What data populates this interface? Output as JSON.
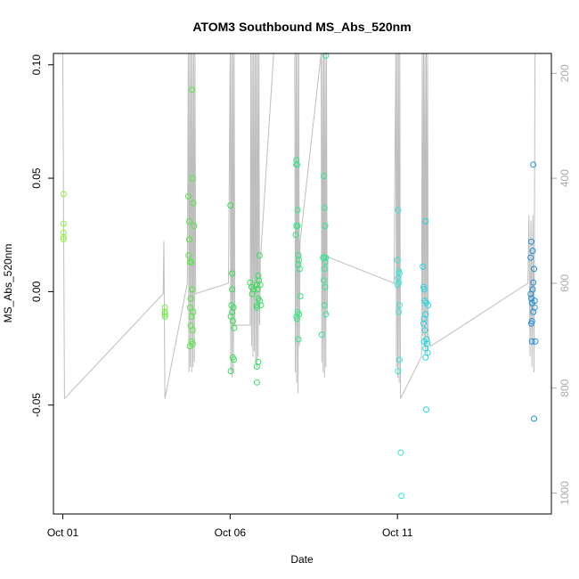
{
  "chart_data": {
    "type": "scatter",
    "title": "ATOM3 Southbound MS_Abs_520nm",
    "xlabel": "Date",
    "ylabel": "MS_Abs_520nm",
    "x_ticks": [
      {
        "value": 1,
        "label": "Oct 01"
      },
      {
        "value": 6,
        "label": "Oct 06"
      },
      {
        "value": 11,
        "label": "Oct 11"
      }
    ],
    "y_ticks": [
      -0.05,
      0.0,
      0.05,
      0.1
    ],
    "y_tick_labels": [
      "-0.05",
      "0.00",
      "0.05",
      "0.10"
    ],
    "xlim": [
      0.72,
      15.6
    ],
    "ylim": [
      -0.098,
      0.105
    ],
    "right_axis": {
      "ticks": [
        200,
        400,
        600,
        800,
        1000
      ],
      "tick_labels": [
        "200",
        "400",
        "600",
        "800",
        "1000"
      ],
      "lim": [
        1040,
        162
      ],
      "color": "#aaaaaa"
    },
    "line_color": "#bebebe",
    "points": [
      {
        "x": 1.02,
        "y": 0.043,
        "color": "#90ee40"
      },
      {
        "x": 1.02,
        "y": 0.03,
        "color": "#90ee40"
      },
      {
        "x": 1.02,
        "y": 0.026,
        "color": "#90ee40"
      },
      {
        "x": 1.02,
        "y": 0.024,
        "color": "#90ee40"
      },
      {
        "x": 1.02,
        "y": 0.023,
        "color": "#90ee40"
      },
      {
        "x": 4.05,
        "y": -0.007,
        "color": "#70e840"
      },
      {
        "x": 4.05,
        "y": -0.009,
        "color": "#70e840"
      },
      {
        "x": 4.05,
        "y": -0.01,
        "color": "#70e840"
      },
      {
        "x": 4.05,
        "y": -0.011,
        "color": "#70e840"
      },
      {
        "x": 4.75,
        "y": 0.042,
        "color": "#50e840"
      },
      {
        "x": 4.78,
        "y": 0.031,
        "color": "#50e840"
      },
      {
        "x": 4.78,
        "y": 0.023,
        "color": "#50e840"
      },
      {
        "x": 4.76,
        "y": 0.016,
        "color": "#50e840"
      },
      {
        "x": 4.8,
        "y": 0.013,
        "color": "#50e840"
      },
      {
        "x": 4.84,
        "y": 0.013,
        "color": "#50e840"
      },
      {
        "x": 4.86,
        "y": 0.089,
        "color": "#50e840"
      },
      {
        "x": 4.88,
        "y": 0.05,
        "color": "#50e840"
      },
      {
        "x": 4.9,
        "y": 0.039,
        "color": "#50e840"
      },
      {
        "x": 4.92,
        "y": 0.029,
        "color": "#50e840"
      },
      {
        "x": 4.86,
        "y": 0.001,
        "color": "#50e840"
      },
      {
        "x": 4.8,
        "y": -0.007,
        "color": "#50e840"
      },
      {
        "x": 4.9,
        "y": -0.009,
        "color": "#50e840"
      },
      {
        "x": 4.84,
        "y": -0.011,
        "color": "#50e840"
      },
      {
        "x": 4.82,
        "y": -0.015,
        "color": "#50e840"
      },
      {
        "x": 4.88,
        "y": -0.017,
        "color": "#50e840"
      },
      {
        "x": 4.84,
        "y": -0.022,
        "color": "#50e840"
      },
      {
        "x": 4.88,
        "y": -0.023,
        "color": "#50e840"
      },
      {
        "x": 4.8,
        "y": -0.024,
        "color": "#50e840"
      },
      {
        "x": 4.82,
        "y": -0.003,
        "color": "#50e840"
      },
      {
        "x": 6.01,
        "y": 0.038,
        "color": "#30e050"
      },
      {
        "x": 6.06,
        "y": 0.008,
        "color": "#30e050"
      },
      {
        "x": 6.06,
        "y": 0.001,
        "color": "#30e050"
      },
      {
        "x": 6.04,
        "y": -0.006,
        "color": "#30e050"
      },
      {
        "x": 6.1,
        "y": -0.007,
        "color": "#30e050"
      },
      {
        "x": 6.06,
        "y": -0.009,
        "color": "#30e050"
      },
      {
        "x": 6.02,
        "y": -0.011,
        "color": "#30e050"
      },
      {
        "x": 6.08,
        "y": -0.013,
        "color": "#30e050"
      },
      {
        "x": 6.12,
        "y": -0.016,
        "color": "#30e050"
      },
      {
        "x": 6.08,
        "y": -0.029,
        "color": "#30e050"
      },
      {
        "x": 6.11,
        "y": -0.03,
        "color": "#30e050"
      },
      {
        "x": 6.02,
        "y": -0.035,
        "color": "#30e050"
      },
      {
        "x": 6.6,
        "y": 0.004,
        "color": "#30e050"
      },
      {
        "x": 6.64,
        "y": 0.002,
        "color": "#30e050"
      },
      {
        "x": 6.7,
        "y": 0.001,
        "color": "#30e050"
      },
      {
        "x": 6.66,
        "y": -0.001,
        "color": "#30e050"
      },
      {
        "x": 6.8,
        "y": 0.003,
        "color": "#30e050"
      },
      {
        "x": 6.82,
        "y": 0.001,
        "color": "#30e050"
      },
      {
        "x": 6.88,
        "y": 0.016,
        "color": "#30e060"
      },
      {
        "x": 6.84,
        "y": 0.007,
        "color": "#30e060"
      },
      {
        "x": 6.86,
        "y": 0.005,
        "color": "#30e060"
      },
      {
        "x": 6.9,
        "y": 0.003,
        "color": "#30e060"
      },
      {
        "x": 6.84,
        "y": -0.003,
        "color": "#30e060"
      },
      {
        "x": 6.88,
        "y": -0.004,
        "color": "#30e060"
      },
      {
        "x": 6.8,
        "y": -0.006,
        "color": "#30e060"
      },
      {
        "x": 6.92,
        "y": -0.006,
        "color": "#30e060"
      },
      {
        "x": 6.8,
        "y": -0.007,
        "color": "#30e060"
      },
      {
        "x": 6.84,
        "y": -0.031,
        "color": "#30e060"
      },
      {
        "x": 6.8,
        "y": -0.033,
        "color": "#30e060"
      },
      {
        "x": 6.8,
        "y": -0.04,
        "color": "#30e060"
      },
      {
        "x": 7.98,
        "y": 0.058,
        "color": "#30e880"
      },
      {
        "x": 7.98,
        "y": 0.056,
        "color": "#30e880"
      },
      {
        "x": 8.0,
        "y": 0.056,
        "color": "#30e880"
      },
      {
        "x": 8.02,
        "y": 0.036,
        "color": "#30e880"
      },
      {
        "x": 7.98,
        "y": 0.029,
        "color": "#30e880"
      },
      {
        "x": 8.02,
        "y": 0.029,
        "color": "#30e880"
      },
      {
        "x": 7.96,
        "y": 0.025,
        "color": "#30e880"
      },
      {
        "x": 8.04,
        "y": 0.016,
        "color": "#30e880"
      },
      {
        "x": 8.06,
        "y": 0.014,
        "color": "#30e880"
      },
      {
        "x": 8.04,
        "y": 0.012,
        "color": "#30e880"
      },
      {
        "x": 8.08,
        "y": 0.01,
        "color": "#30e880"
      },
      {
        "x": 8.1,
        "y": -0.002,
        "color": "#30e880"
      },
      {
        "x": 8.02,
        "y": -0.009,
        "color": "#30e880"
      },
      {
        "x": 8.06,
        "y": -0.01,
        "color": "#30e880"
      },
      {
        "x": 7.98,
        "y": -0.011,
        "color": "#30e880"
      },
      {
        "x": 8.0,
        "y": -0.012,
        "color": "#30e880"
      },
      {
        "x": 8.04,
        "y": -0.021,
        "color": "#30e880"
      },
      {
        "x": 8.86,
        "y": 0.104,
        "color": "#30e890"
      },
      {
        "x": 8.8,
        "y": 0.051,
        "color": "#30e890"
      },
      {
        "x": 8.82,
        "y": 0.037,
        "color": "#30e890"
      },
      {
        "x": 8.84,
        "y": 0.029,
        "color": "#30e890"
      },
      {
        "x": 8.8,
        "y": 0.015,
        "color": "#30e890"
      },
      {
        "x": 8.78,
        "y": 0.015,
        "color": "#30e890"
      },
      {
        "x": 8.86,
        "y": 0.015,
        "color": "#30e890"
      },
      {
        "x": 8.84,
        "y": 0.013,
        "color": "#30e890"
      },
      {
        "x": 8.82,
        "y": 0.01,
        "color": "#30e890"
      },
      {
        "x": 8.8,
        "y": 0.005,
        "color": "#30e890"
      },
      {
        "x": 8.84,
        "y": 0.002,
        "color": "#30e890"
      },
      {
        "x": 8.82,
        "y": -0.006,
        "color": "#30e890"
      },
      {
        "x": 8.86,
        "y": -0.01,
        "color": "#30e890"
      },
      {
        "x": 8.74,
        "y": -0.019,
        "color": "#30e890"
      },
      {
        "x": 11.02,
        "y": 0.036,
        "color": "#30e8d8"
      },
      {
        "x": 11.0,
        "y": 0.014,
        "color": "#30e8d8"
      },
      {
        "x": 11.04,
        "y": 0.009,
        "color": "#30e8d8"
      },
      {
        "x": 11.06,
        "y": 0.008,
        "color": "#30e8d8"
      },
      {
        "x": 11.02,
        "y": 0.006,
        "color": "#30e8d8"
      },
      {
        "x": 11.04,
        "y": 0.004,
        "color": "#30e8d8"
      },
      {
        "x": 11.0,
        "y": 0.003,
        "color": "#30e8d8"
      },
      {
        "x": 11.06,
        "y": -0.006,
        "color": "#30e8d8"
      },
      {
        "x": 11.04,
        "y": -0.009,
        "color": "#30e8d8"
      },
      {
        "x": 11.06,
        "y": -0.03,
        "color": "#30e8d8"
      },
      {
        "x": 11.02,
        "y": -0.035,
        "color": "#30e8d8"
      },
      {
        "x": 11.1,
        "y": -0.071,
        "color": "#30e8d8"
      },
      {
        "x": 11.12,
        "y": -0.09,
        "color": "#30e8d8"
      },
      {
        "x": 11.76,
        "y": 0.011,
        "color": "#20d8e0"
      },
      {
        "x": 11.78,
        "y": 0.002,
        "color": "#20d8e0"
      },
      {
        "x": 11.8,
        "y": 0.001,
        "color": "#20d8e0"
      },
      {
        "x": 11.84,
        "y": 0.031,
        "color": "#20d8e0"
      },
      {
        "x": 11.82,
        "y": -0.004,
        "color": "#20d8e0"
      },
      {
        "x": 11.86,
        "y": -0.005,
        "color": "#20d8e0"
      },
      {
        "x": 11.92,
        "y": -0.006,
        "color": "#20d8e0"
      },
      {
        "x": 11.84,
        "y": -0.01,
        "color": "#20d8e0"
      },
      {
        "x": 11.8,
        "y": -0.012,
        "color": "#20d8e0"
      },
      {
        "x": 11.78,
        "y": -0.014,
        "color": "#20d8e0"
      },
      {
        "x": 11.82,
        "y": -0.017,
        "color": "#20d8e0"
      },
      {
        "x": 11.8,
        "y": -0.022,
        "color": "#20d8e0"
      },
      {
        "x": 11.86,
        "y": -0.021,
        "color": "#20d8e0"
      },
      {
        "x": 11.88,
        "y": -0.023,
        "color": "#20d8e0"
      },
      {
        "x": 11.84,
        "y": -0.025,
        "color": "#20d8e0"
      },
      {
        "x": 11.9,
        "y": -0.027,
        "color": "#20d8e0"
      },
      {
        "x": 11.84,
        "y": -0.029,
        "color": "#20d8e0"
      },
      {
        "x": 11.86,
        "y": -0.052,
        "color": "#20d8e0"
      },
      {
        "x": 15.0,
        "y": 0.022,
        "color": "#2090d8"
      },
      {
        "x": 15.04,
        "y": 0.018,
        "color": "#2090d8"
      },
      {
        "x": 14.98,
        "y": 0.015,
        "color": "#2090d8"
      },
      {
        "x": 15.08,
        "y": 0.01,
        "color": "#2090d8"
      },
      {
        "x": 15.06,
        "y": 0.004,
        "color": "#2090d8"
      },
      {
        "x": 15.04,
        "y": 0.001,
        "color": "#2090d8"
      },
      {
        "x": 14.98,
        "y": -0.001,
        "color": "#2090d8"
      },
      {
        "x": 15.0,
        "y": -0.003,
        "color": "#2090d8"
      },
      {
        "x": 15.1,
        "y": -0.004,
        "color": "#2090d8"
      },
      {
        "x": 15.02,
        "y": -0.005,
        "color": "#2090d8"
      },
      {
        "x": 15.1,
        "y": -0.007,
        "color": "#2090d8"
      },
      {
        "x": 15.06,
        "y": -0.009,
        "color": "#2090d8"
      },
      {
        "x": 15.02,
        "y": -0.013,
        "color": "#2090d8"
      },
      {
        "x": 15.0,
        "y": -0.014,
        "color": "#2090d8"
      },
      {
        "x": 15.06,
        "y": 0.056,
        "color": "#2090d8"
      },
      {
        "x": 15.02,
        "y": -0.022,
        "color": "#2090d8"
      },
      {
        "x": 15.12,
        "y": -0.022,
        "color": "#2090d8"
      },
      {
        "x": 15.08,
        "y": -0.056,
        "color": "#2090d8"
      }
    ],
    "altitude_track": [
      [
        1.0,
        162
      ],
      [
        1.05,
        820
      ],
      [
        4.0,
        620
      ],
      [
        4.02,
        520
      ],
      [
        4.05,
        820
      ],
      [
        4.72,
        600
      ],
      [
        4.75,
        162
      ],
      [
        4.77,
        770
      ],
      [
        4.79,
        162
      ],
      [
        4.81,
        760
      ],
      [
        4.83,
        162
      ],
      [
        4.85,
        770
      ],
      [
        4.87,
        162
      ],
      [
        4.89,
        760
      ],
      [
        4.91,
        162
      ],
      [
        4.93,
        750
      ],
      [
        4.95,
        162
      ],
      [
        4.97,
        620
      ],
      [
        5.95,
        600
      ],
      [
        6.0,
        162
      ],
      [
        6.02,
        770
      ],
      [
        6.04,
        162
      ],
      [
        6.06,
        780
      ],
      [
        6.08,
        162
      ],
      [
        6.1,
        770
      ],
      [
        6.12,
        162
      ],
      [
        6.14,
        680
      ],
      [
        6.6,
        680
      ],
      [
        6.62,
        162
      ],
      [
        6.64,
        720
      ],
      [
        6.66,
        162
      ],
      [
        6.68,
        740
      ],
      [
        6.7,
        162
      ],
      [
        6.72,
        730
      ],
      [
        6.74,
        162
      ],
      [
        6.76,
        750
      ],
      [
        6.78,
        162
      ],
      [
        6.8,
        760
      ],
      [
        6.82,
        162
      ],
      [
        6.84,
        740
      ],
      [
        6.86,
        162
      ],
      [
        6.88,
        680
      ],
      [
        6.9,
        560
      ],
      [
        7.3,
        162
      ],
      [
        7.4,
        162
      ],
      [
        7.85,
        162
      ],
      [
        7.93,
        162
      ],
      [
        7.95,
        770
      ],
      [
        7.97,
        162
      ],
      [
        7.99,
        790
      ],
      [
        8.01,
        162
      ],
      [
        8.03,
        810
      ],
      [
        8.05,
        162
      ],
      [
        8.07,
        720
      ],
      [
        8.09,
        520
      ],
      [
        8.72,
        162
      ],
      [
        8.74,
        750
      ],
      [
        8.76,
        162
      ],
      [
        8.78,
        770
      ],
      [
        8.8,
        162
      ],
      [
        8.82,
        780
      ],
      [
        8.84,
        162
      ],
      [
        8.86,
        760
      ],
      [
        8.88,
        162
      ],
      [
        8.9,
        660
      ],
      [
        8.92,
        550
      ],
      [
        10.9,
        600
      ],
      [
        10.95,
        162
      ],
      [
        10.97,
        760
      ],
      [
        10.99,
        162
      ],
      [
        11.01,
        780
      ],
      [
        11.03,
        162
      ],
      [
        11.05,
        790
      ],
      [
        11.07,
        162
      ],
      [
        11.09,
        820
      ],
      [
        11.72,
        740
      ],
      [
        11.74,
        162
      ],
      [
        11.76,
        700
      ],
      [
        11.78,
        162
      ],
      [
        11.8,
        720
      ],
      [
        11.82,
        162
      ],
      [
        11.84,
        730
      ],
      [
        11.86,
        162
      ],
      [
        11.88,
        740
      ],
      [
        11.9,
        162
      ],
      [
        11.92,
        700
      ],
      [
        12.0,
        720
      ],
      [
        14.9,
        600
      ],
      [
        14.93,
        470
      ],
      [
        14.96,
        740
      ],
      [
        14.99,
        480
      ],
      [
        15.02,
        760
      ],
      [
        15.05,
        470
      ],
      [
        15.08,
        770
      ],
      [
        15.11,
        162
      ]
    ]
  }
}
